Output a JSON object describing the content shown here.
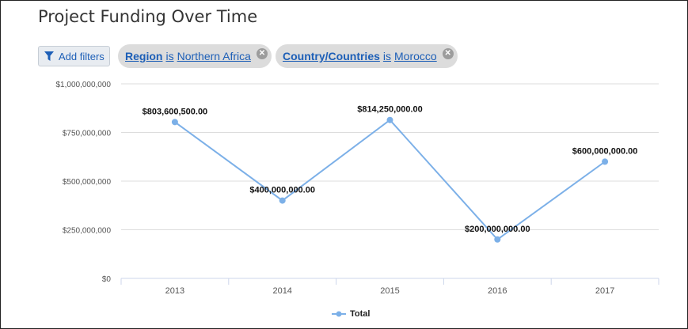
{
  "title": "Project Funding Over Time",
  "filters": {
    "add_label": "Add filters",
    "chips": [
      {
        "field": "Region",
        "op": "is",
        "value": "Northern Africa"
      },
      {
        "field": "Country/Countries",
        "op": "is",
        "value": "Morocco"
      }
    ]
  },
  "colors": {
    "series": "#7cb0e8",
    "grid": "#dddddd",
    "axis": "#ccd6eb",
    "link": "#1d5fb7"
  },
  "chart_data": {
    "type": "line",
    "categories": [
      "2013",
      "2014",
      "2015",
      "2016",
      "2017"
    ],
    "series": [
      {
        "name": "Total",
        "values": [
          803600500,
          400000000,
          814250000,
          200000000,
          600000000
        ],
        "labels": [
          "$803,600,500.00",
          "$400,000,000.00",
          "$814,250,000.00",
          "$200,000,000.00",
          "$600,000,000.00"
        ]
      }
    ],
    "ylim": [
      0,
      1000000000
    ],
    "yticks": [
      {
        "value": 0,
        "label": "$0"
      },
      {
        "value": 250000000,
        "label": "$250,000,000"
      },
      {
        "value": 500000000,
        "label": "$500,000,000"
      },
      {
        "value": 750000000,
        "label": "$750,000,000"
      },
      {
        "value": 1000000000,
        "label": "$1,000,000,000"
      }
    ],
    "grid": true,
    "legend": "bottom-center"
  }
}
